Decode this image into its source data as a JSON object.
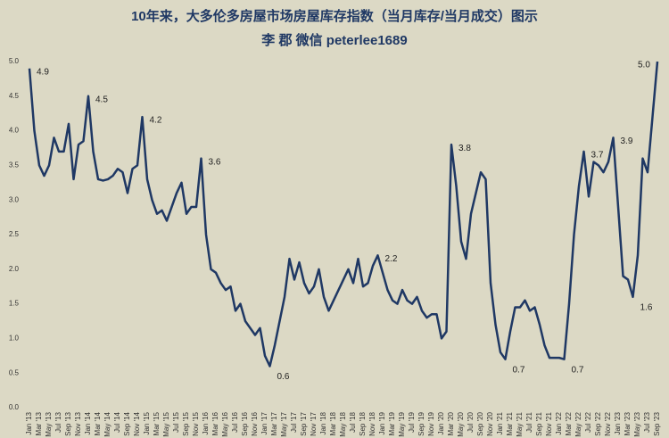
{
  "chart_data": {
    "type": "line",
    "title": "10年来，大多伦多房屋市场房屋库存指数（当月库存/当月成交）图示",
    "subtitle": "李 郡  微信 peterlee1689",
    "categories": [
      "Jan '13",
      null,
      "Mar '13",
      null,
      "May '13",
      null,
      "Jul '13",
      null,
      "Sep '13",
      null,
      "Nov '13",
      null,
      "Jan '14",
      null,
      "Mar '14",
      null,
      "May '14",
      null,
      "Jul '14",
      null,
      "Sep '14",
      null,
      "Nov '14",
      null,
      "Jan '15",
      null,
      "Mar '15",
      null,
      "May '15",
      null,
      "Jul '15",
      null,
      "Sep '15",
      null,
      "Nov '15",
      null,
      "Jan '16",
      null,
      "Mar '16",
      null,
      "May '16",
      null,
      "Jul '16",
      null,
      "Sep '16",
      null,
      "Nov '16",
      null,
      "Jan '17",
      null,
      "Mar '17",
      null,
      "May '17",
      null,
      "Jul '17",
      null,
      "Sep '17",
      null,
      "Nov '17",
      null,
      "Jan '18",
      null,
      "Mar '18",
      null,
      "May '18",
      null,
      "Jul '18",
      null,
      "Sep '18",
      null,
      "Nov '18",
      null,
      "Jan '19",
      null,
      "Mar '19",
      null,
      "May '19",
      null,
      "Jul '19",
      null,
      "Sep '19",
      null,
      "Nov '19",
      null,
      "Jan '20",
      null,
      "Mar '20",
      null,
      "May '20",
      null,
      "Jul '20",
      null,
      "Sep '20",
      null,
      "Nov '20",
      null,
      "Jan '21",
      null,
      "Mar '21",
      null,
      "May '21",
      null,
      "Jul '21",
      null,
      "Sep '21",
      null,
      "Nov '21",
      null,
      "Jan '22",
      null,
      "Mar '22",
      null,
      "May '22",
      null,
      "Jul '22",
      null,
      "Sep '22",
      null,
      "Nov '22",
      null,
      "Jan '23",
      null,
      "Mar '23",
      null,
      "May '23",
      null,
      "Jul '23",
      null,
      "Sep '23"
    ],
    "values": [
      4.9,
      4.0,
      3.5,
      3.35,
      3.5,
      3.9,
      3.7,
      3.7,
      4.1,
      3.3,
      3.8,
      3.85,
      4.5,
      3.7,
      3.3,
      3.28,
      3.3,
      3.35,
      3.45,
      3.4,
      3.1,
      3.45,
      3.5,
      4.2,
      3.3,
      3.0,
      2.8,
      2.85,
      2.7,
      2.9,
      3.1,
      3.25,
      2.8,
      2.9,
      2.9,
      3.6,
      2.5,
      2.0,
      1.95,
      1.8,
      1.7,
      1.75,
      1.4,
      1.5,
      1.25,
      1.15,
      1.05,
      1.15,
      0.75,
      0.6,
      0.9,
      1.25,
      1.6,
      2.15,
      1.85,
      2.1,
      1.8,
      1.65,
      1.75,
      2.0,
      1.6,
      1.4,
      1.55,
      1.7,
      1.85,
      2.0,
      1.8,
      2.15,
      1.75,
      1.8,
      2.05,
      2.2,
      1.95,
      1.7,
      1.55,
      1.5,
      1.7,
      1.55,
      1.5,
      1.6,
      1.4,
      1.3,
      1.35,
      1.35,
      1.0,
      1.1,
      3.8,
      3.2,
      2.4,
      2.15,
      2.8,
      3.1,
      3.4,
      3.3,
      1.8,
      1.2,
      0.8,
      0.7,
      1.1,
      1.45,
      1.45,
      1.55,
      1.4,
      1.45,
      1.2,
      0.9,
      0.72,
      0.72,
      0.72,
      0.7,
      1.5,
      2.5,
      3.2,
      3.7,
      3.05,
      3.55,
      3.5,
      3.4,
      3.55,
      3.9,
      2.9,
      1.9,
      1.85,
      1.6,
      2.2,
      3.6,
      3.4,
      4.2,
      5.0
    ],
    "value_labels": [
      "4.9",
      null,
      null,
      null,
      null,
      null,
      null,
      null,
      null,
      null,
      null,
      null,
      "4.5",
      null,
      null,
      null,
      null,
      null,
      null,
      null,
      null,
      null,
      null,
      "4.2",
      null,
      null,
      null,
      null,
      null,
      null,
      null,
      null,
      null,
      null,
      null,
      "3.6",
      null,
      null,
      null,
      null,
      null,
      null,
      null,
      null,
      null,
      null,
      null,
      null,
      null,
      "0.6",
      null,
      null,
      null,
      null,
      null,
      null,
      null,
      null,
      null,
      null,
      null,
      null,
      null,
      null,
      null,
      null,
      null,
      null,
      null,
      null,
      null,
      "2.2",
      null,
      null,
      null,
      null,
      null,
      null,
      null,
      null,
      null,
      null,
      null,
      null,
      null,
      null,
      "3.8",
      null,
      null,
      null,
      null,
      null,
      null,
      null,
      null,
      null,
      null,
      "0.7",
      null,
      null,
      null,
      null,
      null,
      null,
      null,
      null,
      null,
      null,
      null,
      "0.7",
      null,
      null,
      null,
      "3.7",
      null,
      null,
      null,
      null,
      null,
      "3.9",
      null,
      null,
      null,
      "1.6",
      null,
      null,
      null,
      null,
      "5.0"
    ],
    "color": "#1f3864",
    "ylim": [
      0,
      5
    ],
    "yticks": [
      {
        "value": 0,
        "label": "0.0"
      },
      {
        "value": 0.5,
        "label": "0.5"
      },
      {
        "value": 1,
        "label": "1.0"
      },
      {
        "value": 1.5,
        "label": "1.5"
      },
      {
        "value": 2,
        "label": "2.0"
      },
      {
        "value": 2.5,
        "label": "2.5"
      },
      {
        "value": 3,
        "label": "3.0"
      },
      {
        "value": 3.5,
        "label": "3.5"
      },
      {
        "value": 4,
        "label": "4.0"
      },
      {
        "value": 4.5,
        "label": "4.5"
      },
      {
        "value": 5,
        "label": "5.0"
      }
    ],
    "grid": false
  }
}
